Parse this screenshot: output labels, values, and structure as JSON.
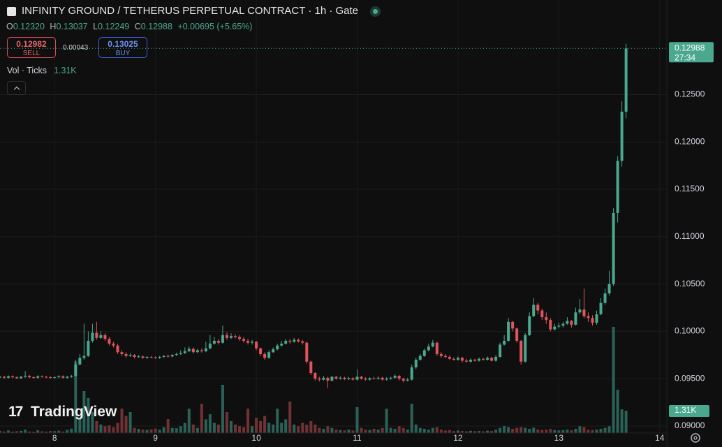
{
  "header": {
    "title": "INFINITY GROUND / TETHERUS PERPETUAL CONTRACT · 1h · Gate",
    "legend": [
      {
        "key": "O",
        "value": "0.12320"
      },
      {
        "key": "H",
        "value": "0.13037"
      },
      {
        "key": "L",
        "value": "0.12249"
      },
      {
        "key": "C",
        "value": "0.12988"
      }
    ],
    "change": "+0.00695 (+5.65%)",
    "sell": {
      "price": "0.12982",
      "label": "SELL"
    },
    "spread": "0.00043",
    "buy": {
      "price": "0.13025",
      "label": "BUY"
    },
    "volume_legend": {
      "label": "Vol · Ticks",
      "value": "1.31K"
    },
    "logo": "TradingView"
  },
  "chart_data": {
    "type": "candlestick",
    "grid": true,
    "up_color": "#4aa88f",
    "down_color": "#e0555b",
    "volume_up_color": "#2a6258",
    "volume_down_color": "#713236",
    "xlim": [
      -13,
      145.7
    ],
    "xticks": [
      {
        "value": 0,
        "label": "8"
      },
      {
        "value": 24,
        "label": "9"
      },
      {
        "value": 48,
        "label": "10"
      },
      {
        "value": 72,
        "label": "11"
      },
      {
        "value": 96,
        "label": "12"
      },
      {
        "value": 120,
        "label": "13"
      },
      {
        "value": 144,
        "label": "14"
      }
    ],
    "ylim": [
      0.08926,
      0.13499
    ],
    "yticks": [
      {
        "value": 0.09,
        "label": "0.09000"
      },
      {
        "value": 0.095,
        "label": "0.09500"
      },
      {
        "value": 0.1,
        "label": "0.10000"
      },
      {
        "value": 0.105,
        "label": "0.10500"
      },
      {
        "value": 0.11,
        "label": "0.11000"
      },
      {
        "value": 0.115,
        "label": "0.11500"
      },
      {
        "value": 0.12,
        "label": "0.12000"
      },
      {
        "value": 0.125,
        "label": "0.12500"
      }
    ],
    "volume_ylim": [
      0,
      25400
    ],
    "last_price_label": "0.12988",
    "countdown": "27:34",
    "last_volume_label": "1.31K",
    "x": [
      -13,
      -12,
      -11,
      -10,
      -9,
      -8,
      -7,
      -6,
      -5,
      -4,
      -3,
      -2,
      -1,
      0,
      1,
      2,
      3,
      4,
      5,
      6,
      7,
      8,
      9,
      10,
      11,
      12,
      13,
      14,
      15,
      16,
      17,
      18,
      19,
      20,
      21,
      22,
      23,
      24,
      25,
      26,
      27,
      28,
      29,
      30,
      31,
      32,
      33,
      34,
      35,
      36,
      37,
      38,
      39,
      40,
      41,
      42,
      43,
      44,
      45,
      46,
      47,
      48,
      49,
      50,
      51,
      52,
      53,
      54,
      55,
      56,
      57,
      58,
      59,
      60,
      61,
      62,
      63,
      64,
      65,
      66,
      67,
      68,
      69,
      70,
      71,
      72,
      73,
      74,
      75,
      76,
      77,
      78,
      79,
      80,
      81,
      82,
      83,
      84,
      85,
      86,
      87,
      88,
      89,
      90,
      91,
      92,
      93,
      94,
      95,
      96,
      97,
      98,
      99,
      100,
      101,
      102,
      103,
      104,
      105,
      106,
      107,
      108,
      109,
      110,
      111,
      112,
      113,
      114,
      115,
      116,
      117,
      118,
      119,
      120,
      121,
      122,
      123,
      124,
      125,
      126,
      127,
      128,
      129,
      130,
      131,
      132,
      133,
      134,
      135,
      136
    ],
    "open": [
      0.09515,
      0.0952,
      0.0951,
      0.09525,
      0.09515,
      0.09505,
      0.0952,
      0.0953,
      0.09515,
      0.0951,
      0.09525,
      0.0952,
      0.09515,
      0.0951,
      0.09515,
      0.09525,
      0.0951,
      0.0952,
      0.0953,
      0.0965,
      0.0972,
      0.0974,
      0.099,
      0.09985,
      0.0993,
      0.0996,
      0.0992,
      0.0987,
      0.0985,
      0.0978,
      0.0976,
      0.0974,
      0.0975,
      0.0973,
      0.09735,
      0.0972,
      0.0973,
      0.09725,
      0.0972,
      0.0973,
      0.0974,
      0.09735,
      0.0975,
      0.0976,
      0.0977,
      0.0979,
      0.09815,
      0.0978,
      0.098,
      0.0979,
      0.0982,
      0.0987,
      0.099,
      0.0988,
      0.0996,
      0.0993,
      0.0995,
      0.0994,
      0.0992,
      0.099,
      0.0988,
      0.0989,
      0.0982,
      0.0976,
      0.0972,
      0.0978,
      0.0981,
      0.0985,
      0.0987,
      0.099,
      0.0989,
      0.0991,
      0.09895,
      0.0988,
      0.0968,
      0.0956,
      0.095,
      0.0949,
      0.0951,
      0.0948,
      0.0952,
      0.095,
      0.0951,
      0.09495,
      0.09505,
      0.0949,
      0.0952,
      0.095,
      0.0949,
      0.09505,
      0.095,
      0.0951,
      0.0949,
      0.095,
      0.0951,
      0.0953,
      0.095,
      0.0948,
      0.0949,
      0.0962,
      0.097,
      0.0974,
      0.098,
      0.0984,
      0.0988,
      0.0976,
      0.0974,
      0.0973,
      0.0971,
      0.097,
      0.0972,
      0.0969,
      0.0968,
      0.097,
      0.0969,
      0.0971,
      0.097,
      0.0972,
      0.0969,
      0.0973,
      0.0986,
      0.099,
      0.101,
      0.1003,
      0.099,
      0.0968,
      0.0996,
      0.1016,
      0.1028,
      0.1022,
      0.1015,
      0.1012,
      0.1002,
      0.1005,
      0.1006,
      0.1008,
      0.1011,
      0.1007,
      0.102,
      0.1023,
      0.1016,
      0.1014,
      0.1009,
      0.1018,
      0.103,
      0.104,
      0.105,
      0.1125,
      0.118,
      0.1232
    ],
    "high": [
      0.0953,
      0.0953,
      0.09535,
      0.09535,
      0.09525,
      0.0953,
      0.0958,
      0.0954,
      0.09525,
      0.09535,
      0.09535,
      0.0953,
      0.09525,
      0.09525,
      0.09535,
      0.09535,
      0.0953,
      0.0954,
      0.097,
      0.0976,
      0.1008,
      0.1,
      0.1008,
      0.101,
      0.1,
      0.0998,
      0.0994,
      0.0989,
      0.0987,
      0.098,
      0.0978,
      0.0977,
      0.0976,
      0.0975,
      0.09745,
      0.0974,
      0.0974,
      0.09735,
      0.0974,
      0.0975,
      0.09755,
      0.0976,
      0.09775,
      0.098,
      0.0983,
      0.0984,
      0.0983,
      0.09815,
      0.0982,
      0.0989,
      0.0996,
      0.0994,
      0.0992,
      0.1006,
      0.0999,
      0.0998,
      0.0997,
      0.0996,
      0.0994,
      0.0992,
      0.0991,
      0.099,
      0.0983,
      0.0978,
      0.098,
      0.0983,
      0.0987,
      0.099,
      0.0992,
      0.0992,
      0.0993,
      0.09925,
      0.0991,
      0.0989,
      0.0969,
      0.0957,
      0.0952,
      0.0953,
      0.0952,
      0.0953,
      0.0953,
      0.09525,
      0.0952,
      0.0952,
      0.09515,
      0.096,
      0.0953,
      0.09515,
      0.09515,
      0.0952,
      0.09525,
      0.0952,
      0.09515,
      0.0952,
      0.09545,
      0.0954,
      0.0951,
      0.0951,
      0.0965,
      0.0972,
      0.0976,
      0.0982,
      0.0987,
      0.0991,
      0.0989,
      0.0978,
      0.0976,
      0.09745,
      0.09725,
      0.09735,
      0.0973,
      0.0971,
      0.09715,
      0.0971,
      0.09725,
      0.0972,
      0.09735,
      0.0973,
      0.0975,
      0.0988,
      0.0996,
      0.1014,
      0.1011,
      0.1004,
      0.0991,
      0.0998,
      0.102,
      0.1035,
      0.103,
      0.1024,
      0.102,
      0.1014,
      0.1008,
      0.1009,
      0.101,
      0.1015,
      0.1012,
      0.1025,
      0.1034,
      0.1045,
      0.102,
      0.1017,
      0.1022,
      0.1035,
      0.1045,
      0.1064,
      0.113,
      0.1185,
      0.1243,
      0.13037
    ],
    "low": [
      0.09505,
      0.095,
      0.095,
      0.09505,
      0.09495,
      0.09495,
      0.0951,
      0.09505,
      0.095,
      0.095,
      0.0951,
      0.09505,
      0.095,
      0.095,
      0.09505,
      0.095,
      0.095,
      0.0951,
      0.0952,
      0.0964,
      0.097,
      0.0973,
      0.0988,
      0.0991,
      0.0992,
      0.099,
      0.0985,
      0.0983,
      0.0976,
      0.0974,
      0.0972,
      0.0973,
      0.09715,
      0.0972,
      0.0971,
      0.0971,
      0.09715,
      0.0971,
      0.0971,
      0.0972,
      0.09725,
      0.09725,
      0.0974,
      0.0975,
      0.0976,
      0.0978,
      0.09765,
      0.0977,
      0.09775,
      0.0978,
      0.0981,
      0.0986,
      0.0986,
      0.0987,
      0.0991,
      0.0992,
      0.09925,
      0.099,
      0.0988,
      0.0986,
      0.0986,
      0.098,
      0.0974,
      0.097,
      0.0971,
      0.0977,
      0.098,
      0.0984,
      0.0986,
      0.0987,
      0.0988,
      0.0988,
      0.0986,
      0.0966,
      0.0954,
      0.0948,
      0.0947,
      0.0948,
      0.094,
      0.0947,
      0.0949,
      0.0949,
      0.09485,
      0.09485,
      0.0948,
      0.0948,
      0.0949,
      0.0948,
      0.0948,
      0.0949,
      0.0949,
      0.0948,
      0.0948,
      0.0949,
      0.095,
      0.0948,
      0.0946,
      0.0947,
      0.0948,
      0.096,
      0.0969,
      0.0973,
      0.0979,
      0.0983,
      0.0974,
      0.0972,
      0.09715,
      0.097,
      0.0969,
      0.0969,
      0.0967,
      0.0967,
      0.0967,
      0.0968,
      0.0968,
      0.0969,
      0.0969,
      0.0968,
      0.0968,
      0.0972,
      0.0985,
      0.0989,
      0.1,
      0.0988,
      0.0965,
      0.0967,
      0.0995,
      0.1015,
      0.1018,
      0.1012,
      0.1008,
      0.1,
      0.1001,
      0.1003,
      0.1004,
      0.1007,
      0.1004,
      0.1006,
      0.1018,
      0.1014,
      0.101,
      0.1006,
      0.1007,
      0.1017,
      0.1028,
      0.1038,
      0.1048,
      0.1115,
      0.1174,
      0.12249
    ],
    "close": [
      0.0952,
      0.0951,
      0.09525,
      0.09515,
      0.09505,
      0.0952,
      0.0953,
      0.09515,
      0.0951,
      0.09525,
      0.0952,
      0.09515,
      0.0951,
      0.09515,
      0.09525,
      0.0951,
      0.0952,
      0.0953,
      0.0965,
      0.0972,
      0.0974,
      0.099,
      0.09985,
      0.0993,
      0.0996,
      0.0992,
      0.0987,
      0.0985,
      0.0978,
      0.0976,
      0.0974,
      0.0975,
      0.0973,
      0.09735,
      0.0972,
      0.0973,
      0.09725,
      0.0972,
      0.0973,
      0.0974,
      0.09735,
      0.0975,
      0.0976,
      0.0977,
      0.0979,
      0.09815,
      0.0978,
      0.098,
      0.0979,
      0.0982,
      0.0987,
      0.099,
      0.0988,
      0.0996,
      0.0993,
      0.0995,
      0.0994,
      0.0992,
      0.099,
      0.0988,
      0.0989,
      0.0982,
      0.0976,
      0.0972,
      0.0978,
      0.0981,
      0.0985,
      0.0987,
      0.099,
      0.0989,
      0.0991,
      0.09895,
      0.0988,
      0.0968,
      0.0956,
      0.095,
      0.0949,
      0.0951,
      0.0948,
      0.0952,
      0.095,
      0.0951,
      0.09495,
      0.09505,
      0.0949,
      0.0952,
      0.095,
      0.0949,
      0.09505,
      0.095,
      0.0951,
      0.0949,
      0.095,
      0.0951,
      0.0953,
      0.095,
      0.0948,
      0.0949,
      0.0962,
      0.097,
      0.0974,
      0.098,
      0.0984,
      0.0988,
      0.0976,
      0.0974,
      0.0973,
      0.0971,
      0.097,
      0.0972,
      0.0969,
      0.0968,
      0.097,
      0.0969,
      0.0971,
      0.097,
      0.0972,
      0.0969,
      0.0973,
      0.0986,
      0.099,
      0.101,
      0.1003,
      0.099,
      0.0968,
      0.0996,
      0.1016,
      0.1028,
      0.1022,
      0.1015,
      0.1012,
      0.1002,
      0.1005,
      0.1006,
      0.1008,
      0.1011,
      0.1007,
      0.102,
      0.1023,
      0.1016,
      0.1014,
      0.1009,
      0.1018,
      0.103,
      0.104,
      0.105,
      0.1125,
      0.118,
      0.1232,
      0.12988
    ],
    "volume": [
      120,
      90,
      150,
      80,
      110,
      130,
      200,
      90,
      70,
      160,
      100,
      80,
      120,
      110,
      140,
      90,
      180,
      260,
      4200,
      900,
      2460,
      2050,
      1230,
      700,
      500,
      400,
      450,
      350,
      600,
      1430,
      1000,
      1230,
      300,
      250,
      200,
      180,
      220,
      260,
      200,
      350,
      820,
      300,
      280,
      400,
      600,
      1430,
      500,
      300,
      1720,
      800,
      1100,
      600,
      500,
      2830,
      1230,
      700,
      500,
      400,
      350,
      1430,
      400,
      900,
      700,
      1000,
      600,
      500,
      1430,
      600,
      800,
      1850,
      500,
      400,
      600,
      490,
      700,
      500,
      300,
      250,
      400,
      300,
      200,
      180,
      150,
      200,
      150,
      1520,
      300,
      200,
      180,
      250,
      200,
      300,
      1430,
      300,
      250,
      400,
      300,
      200,
      1720,
      500,
      300,
      250,
      200,
      300,
      350,
      200,
      150,
      180,
      120,
      150,
      120,
      100,
      130,
      110,
      120,
      100,
      140,
      120,
      200,
      300,
      410,
      350,
      250,
      300,
      350,
      300,
      250,
      320,
      200,
      180,
      200,
      250,
      180,
      150,
      170,
      200,
      160,
      250,
      400,
      350,
      200,
      180,
      200,
      250,
      300,
      400,
      6230,
      2540,
      1390,
      1310
    ]
  }
}
